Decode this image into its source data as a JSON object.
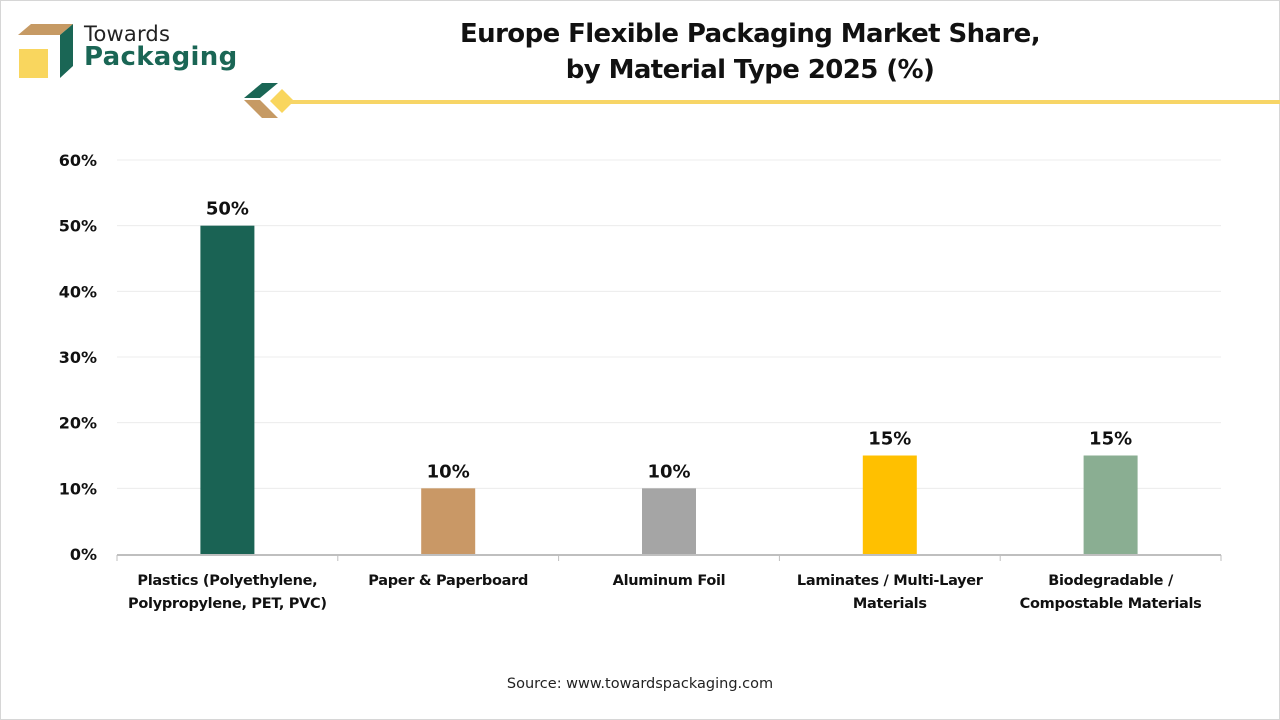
{
  "brand": {
    "line1": "Towards",
    "line2": "Packaging",
    "colors": {
      "green": "#1a6655",
      "tan": "#c69a64",
      "yellow": "#f9d65e"
    }
  },
  "header": {
    "title_line1": "Europe Flexible Packaging Market Share,",
    "title_line2": "by Material Type 2025 (%)"
  },
  "source": "Source: www.towardspackaging.com",
  "chart_data": {
    "type": "bar",
    "title": "Europe Flexible Packaging Market Share, by Material Type 2025 (%)",
    "xlabel": "",
    "ylabel": "",
    "ylim": [
      0,
      60
    ],
    "y_ticks": [
      0,
      10,
      20,
      30,
      40,
      50,
      60
    ],
    "y_tick_labels": [
      "0%",
      "10%",
      "20%",
      "30%",
      "40%",
      "50%",
      "60%"
    ],
    "grid": true,
    "legend": "none",
    "categories": [
      [
        "Plastics (Polyethylene,",
        "Polypropylene, PET, PVC)"
      ],
      [
        "Paper & Paperboard"
      ],
      [
        "Aluminum Foil"
      ],
      [
        "Laminates / Multi-Layer",
        "Materials"
      ],
      [
        "Biodegradable /",
        "Compostable Materials"
      ]
    ],
    "values": [
      50,
      10,
      10,
      15,
      15
    ],
    "data_labels": [
      "50%",
      "10%",
      "10%",
      "15%",
      "15%"
    ],
    "bar_colors": [
      "#1a6354",
      "#c99866",
      "#a5a5a5",
      "#ffc000",
      "#8aae92"
    ]
  }
}
